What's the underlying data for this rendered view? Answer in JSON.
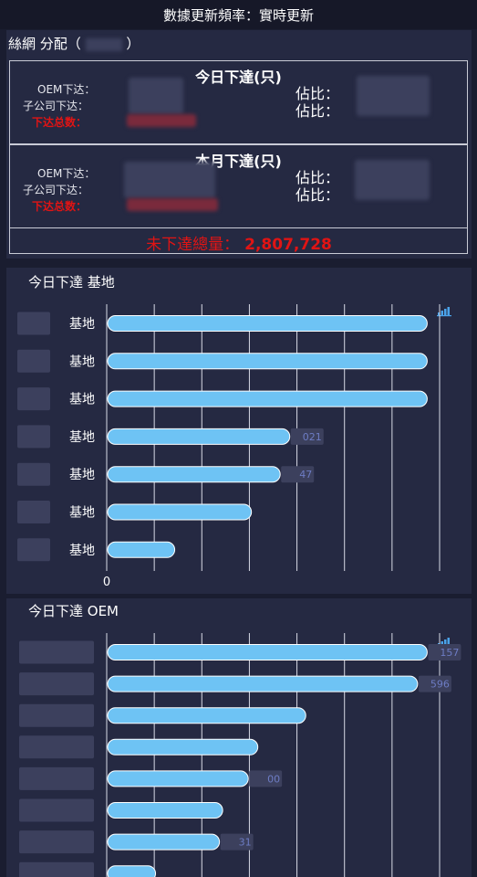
{
  "header": {
    "refresh_label": "數據更新頻率：",
    "refresh_value": "實時更新"
  },
  "distribution": {
    "title_prefix": "絲網",
    "title_suffix": "分配（",
    "title_close": "）",
    "today": {
      "heading": "今日下達(只)",
      "oem_label": "OEM下达：",
      "sub_label": "子公司下达：",
      "total_label": "下达总数：",
      "ratio_label": "佔比："
    },
    "month": {
      "heading": "本月下達(只)",
      "oem_label": "OEM下达：",
      "sub_label": "子公司下达：",
      "total_label": "下达总数：",
      "ratio_label": "佔比："
    },
    "undelivered_label": "未下達總量：",
    "undelivered_value": "2,807,728"
  },
  "chart_data": [
    {
      "type": "bar",
      "title": "今日下達 基地",
      "categories": [
        "基地",
        "基地",
        "基地",
        "基地",
        "基地",
        "基地",
        "基地"
      ],
      "values": [
        100,
        100,
        100,
        57,
        54,
        45,
        21
      ],
      "value_labels": [
        "",
        "",
        "",
        "021",
        "47",
        "",
        ""
      ],
      "xlim_label": "0",
      "orientation": "horizontal",
      "colors": {
        "bar": "#6ec3f4",
        "grid": "#d8dae6"
      },
      "icon": "bar-chart-icon"
    },
    {
      "type": "bar",
      "title": "今日下達 OEM",
      "categories": [
        "",
        "",
        "",
        "",
        "",
        "",
        "",
        ""
      ],
      "values": [
        100,
        97,
        62,
        47,
        44,
        36,
        35,
        15
      ],
      "value_labels": [
        "157",
        "596",
        "",
        "",
        "00",
        "",
        "31",
        ""
      ],
      "orientation": "horizontal",
      "colors": {
        "bar": "#6ec3f4",
        "grid": "#d8dae6"
      },
      "icon": "bar-chart-icon"
    }
  ]
}
